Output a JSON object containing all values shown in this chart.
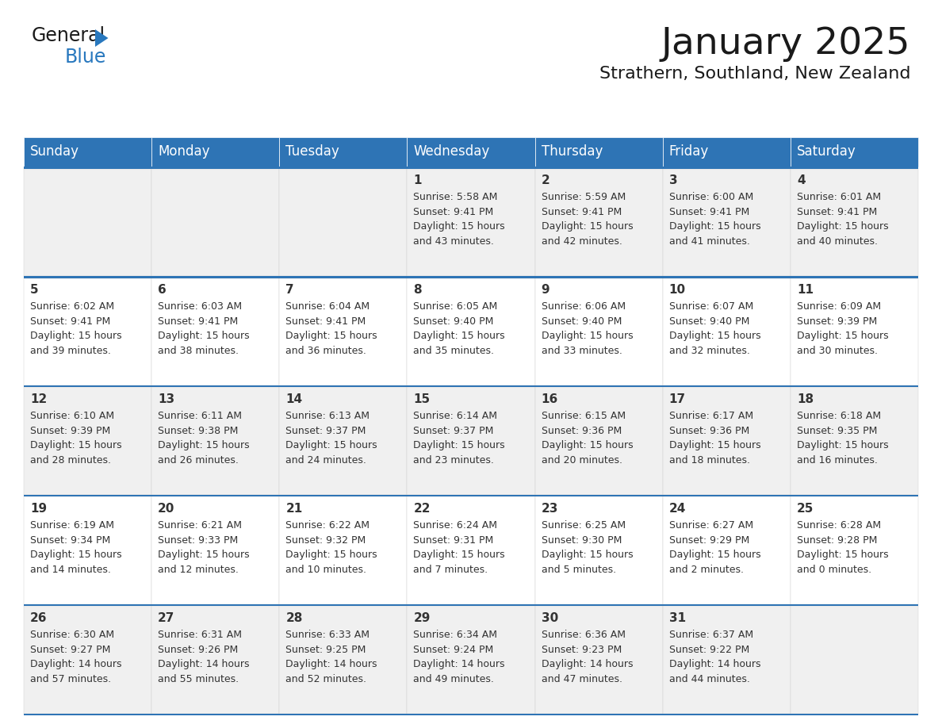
{
  "title": "January 2025",
  "subtitle": "Strathern, Southland, New Zealand",
  "header_bg": "#2E74B5",
  "header_text_color": "#FFFFFF",
  "cell_bg_odd": "#F0F0F0",
  "cell_bg_even": "#FFFFFF",
  "border_color": "#2E74B5",
  "text_color": "#333333",
  "days_of_week": [
    "Sunday",
    "Monday",
    "Tuesday",
    "Wednesday",
    "Thursday",
    "Friday",
    "Saturday"
  ],
  "weeks": [
    [
      {
        "day": "",
        "info": ""
      },
      {
        "day": "",
        "info": ""
      },
      {
        "day": "",
        "info": ""
      },
      {
        "day": "1",
        "info": "Sunrise: 5:58 AM\nSunset: 9:41 PM\nDaylight: 15 hours\nand 43 minutes."
      },
      {
        "day": "2",
        "info": "Sunrise: 5:59 AM\nSunset: 9:41 PM\nDaylight: 15 hours\nand 42 minutes."
      },
      {
        "day": "3",
        "info": "Sunrise: 6:00 AM\nSunset: 9:41 PM\nDaylight: 15 hours\nand 41 minutes."
      },
      {
        "day": "4",
        "info": "Sunrise: 6:01 AM\nSunset: 9:41 PM\nDaylight: 15 hours\nand 40 minutes."
      }
    ],
    [
      {
        "day": "5",
        "info": "Sunrise: 6:02 AM\nSunset: 9:41 PM\nDaylight: 15 hours\nand 39 minutes."
      },
      {
        "day": "6",
        "info": "Sunrise: 6:03 AM\nSunset: 9:41 PM\nDaylight: 15 hours\nand 38 minutes."
      },
      {
        "day": "7",
        "info": "Sunrise: 6:04 AM\nSunset: 9:41 PM\nDaylight: 15 hours\nand 36 minutes."
      },
      {
        "day": "8",
        "info": "Sunrise: 6:05 AM\nSunset: 9:40 PM\nDaylight: 15 hours\nand 35 minutes."
      },
      {
        "day": "9",
        "info": "Sunrise: 6:06 AM\nSunset: 9:40 PM\nDaylight: 15 hours\nand 33 minutes."
      },
      {
        "day": "10",
        "info": "Sunrise: 6:07 AM\nSunset: 9:40 PM\nDaylight: 15 hours\nand 32 minutes."
      },
      {
        "day": "11",
        "info": "Sunrise: 6:09 AM\nSunset: 9:39 PM\nDaylight: 15 hours\nand 30 minutes."
      }
    ],
    [
      {
        "day": "12",
        "info": "Sunrise: 6:10 AM\nSunset: 9:39 PM\nDaylight: 15 hours\nand 28 minutes."
      },
      {
        "day": "13",
        "info": "Sunrise: 6:11 AM\nSunset: 9:38 PM\nDaylight: 15 hours\nand 26 minutes."
      },
      {
        "day": "14",
        "info": "Sunrise: 6:13 AM\nSunset: 9:37 PM\nDaylight: 15 hours\nand 24 minutes."
      },
      {
        "day": "15",
        "info": "Sunrise: 6:14 AM\nSunset: 9:37 PM\nDaylight: 15 hours\nand 23 minutes."
      },
      {
        "day": "16",
        "info": "Sunrise: 6:15 AM\nSunset: 9:36 PM\nDaylight: 15 hours\nand 20 minutes."
      },
      {
        "day": "17",
        "info": "Sunrise: 6:17 AM\nSunset: 9:36 PM\nDaylight: 15 hours\nand 18 minutes."
      },
      {
        "day": "18",
        "info": "Sunrise: 6:18 AM\nSunset: 9:35 PM\nDaylight: 15 hours\nand 16 minutes."
      }
    ],
    [
      {
        "day": "19",
        "info": "Sunrise: 6:19 AM\nSunset: 9:34 PM\nDaylight: 15 hours\nand 14 minutes."
      },
      {
        "day": "20",
        "info": "Sunrise: 6:21 AM\nSunset: 9:33 PM\nDaylight: 15 hours\nand 12 minutes."
      },
      {
        "day": "21",
        "info": "Sunrise: 6:22 AM\nSunset: 9:32 PM\nDaylight: 15 hours\nand 10 minutes."
      },
      {
        "day": "22",
        "info": "Sunrise: 6:24 AM\nSunset: 9:31 PM\nDaylight: 15 hours\nand 7 minutes."
      },
      {
        "day": "23",
        "info": "Sunrise: 6:25 AM\nSunset: 9:30 PM\nDaylight: 15 hours\nand 5 minutes."
      },
      {
        "day": "24",
        "info": "Sunrise: 6:27 AM\nSunset: 9:29 PM\nDaylight: 15 hours\nand 2 minutes."
      },
      {
        "day": "25",
        "info": "Sunrise: 6:28 AM\nSunset: 9:28 PM\nDaylight: 15 hours\nand 0 minutes."
      }
    ],
    [
      {
        "day": "26",
        "info": "Sunrise: 6:30 AM\nSunset: 9:27 PM\nDaylight: 14 hours\nand 57 minutes."
      },
      {
        "day": "27",
        "info": "Sunrise: 6:31 AM\nSunset: 9:26 PM\nDaylight: 14 hours\nand 55 minutes."
      },
      {
        "day": "28",
        "info": "Sunrise: 6:33 AM\nSunset: 9:25 PM\nDaylight: 14 hours\nand 52 minutes."
      },
      {
        "day": "29",
        "info": "Sunrise: 6:34 AM\nSunset: 9:24 PM\nDaylight: 14 hours\nand 49 minutes."
      },
      {
        "day": "30",
        "info": "Sunrise: 6:36 AM\nSunset: 9:23 PM\nDaylight: 14 hours\nand 47 minutes."
      },
      {
        "day": "31",
        "info": "Sunrise: 6:37 AM\nSunset: 9:22 PM\nDaylight: 14 hours\nand 44 minutes."
      },
      {
        "day": "",
        "info": ""
      }
    ]
  ],
  "logo_general_color": "#1A1A1A",
  "logo_blue_color": "#2878BE",
  "title_fontsize": 34,
  "subtitle_fontsize": 16,
  "header_fontsize": 12,
  "day_num_fontsize": 11,
  "cell_text_fontsize": 9
}
